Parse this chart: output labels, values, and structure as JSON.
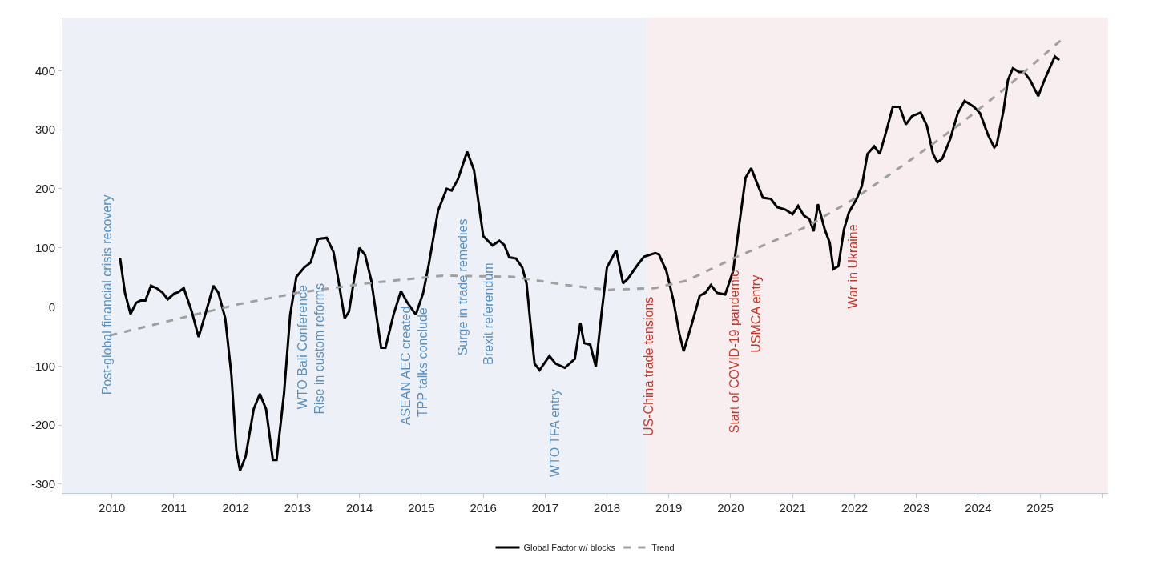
{
  "chart_data": {
    "type": "line",
    "legend": "bottom",
    "grid": false,
    "marker": "none",
    "xlim": [
      2009.2,
      2026.1
    ],
    "xticks": [
      2010,
      2011,
      2012,
      2013,
      2014,
      2015,
      2016,
      2017,
      2018,
      2019,
      2020,
      2021,
      2022,
      2023,
      2024,
      2025,
      {
        "value": 2026,
        "label": null
      }
    ],
    "ylim": [
      -315,
      490
    ],
    "yticks": [
      -300,
      -200,
      -100,
      0,
      100,
      200,
      300,
      400
    ],
    "bands": [
      {
        "axis": "x",
        "from": 2009.2,
        "to": 2018.65,
        "color": "#edf1f7"
      },
      {
        "axis": "x",
        "from": 2018.65,
        "to": 2026.1,
        "color": "#f9eeef"
      }
    ],
    "series": [
      {
        "name": "Global Factor w/ blocks",
        "color": "#000000",
        "line_style": "solid",
        "x": [
          2010.13,
          2010.21,
          2010.3,
          2010.39,
          2010.46,
          2010.54,
          2010.63,
          2010.72,
          2010.82,
          2010.9,
          2011.01,
          2011.07,
          2011.16,
          2011.29,
          2011.4,
          2011.52,
          2011.64,
          2011.72,
          2011.83,
          2011.93,
          2012.01,
          2012.07,
          2012.16,
          2012.29,
          2012.39,
          2012.49,
          2012.6,
          2012.66,
          2012.78,
          2012.88,
          2012.98,
          2013.11,
          2013.21,
          2013.33,
          2013.47,
          2013.58,
          2013.65,
          2013.76,
          2013.83,
          2013.91,
          2014.0,
          2014.09,
          2014.19,
          2014.35,
          2014.42,
          2014.55,
          2014.67,
          2014.77,
          2014.91,
          2015.03,
          2015.12,
          2015.27,
          2015.41,
          2015.49,
          2015.59,
          2015.74,
          2015.85,
          2016.0,
          2016.15,
          2016.26,
          2016.34,
          2016.42,
          2016.53,
          2016.63,
          2016.7,
          2016.77,
          2016.83,
          2016.91,
          2017.07,
          2017.17,
          2017.32,
          2017.48,
          2017.57,
          2017.63,
          2017.73,
          2017.82,
          2017.91,
          2018.0,
          2018.15,
          2018.26,
          2018.34,
          2018.5,
          2018.6,
          2018.78,
          2018.84,
          2018.96,
          2019.07,
          2019.17,
          2019.24,
          2019.37,
          2019.5,
          2019.59,
          2019.68,
          2019.78,
          2019.91,
          2020.04,
          2020.14,
          2020.24,
          2020.33,
          2020.42,
          2020.52,
          2020.65,
          2020.75,
          2020.88,
          2021.0,
          2021.09,
          2021.18,
          2021.27,
          2021.34,
          2021.41,
          2021.52,
          2021.6,
          2021.66,
          2021.74,
          2021.83,
          2021.91,
          2022.04,
          2022.12,
          2022.21,
          2022.32,
          2022.41,
          2022.51,
          2022.62,
          2022.73,
          2022.83,
          2022.93,
          2023.07,
          2023.17,
          2023.27,
          2023.34,
          2023.42,
          2023.55,
          2023.67,
          2023.78,
          2023.93,
          2024.03,
          2024.16,
          2024.26,
          2024.3,
          2024.41,
          2024.48,
          2024.56,
          2024.66,
          2024.74,
          2024.84,
          2024.97,
          2025.07,
          2025.15,
          2025.24,
          2025.31
        ],
        "values": [
          83,
          24,
          -12,
          7,
          11,
          11,
          36,
          32,
          24,
          13,
          23,
          25,
          32,
          -8,
          -51,
          -8,
          36,
          24,
          -19,
          -115,
          -243,
          -277,
          -253,
          -173,
          -147,
          -173,
          -259,
          -259,
          -147,
          -13,
          51,
          67,
          75,
          115,
          117,
          93,
          51,
          -19,
          -8,
          45,
          100,
          88,
          45,
          -69,
          -69,
          -13,
          27,
          8,
          -13,
          24,
          72,
          163,
          200,
          197,
          216,
          263,
          232,
          120,
          104,
          112,
          105,
          84,
          82,
          67,
          40,
          -35,
          -96,
          -107,
          -83,
          -96,
          -103,
          -88,
          -27,
          -61,
          -64,
          -101,
          -13,
          67,
          96,
          40,
          48,
          72,
          85,
          91,
          89,
          61,
          13,
          -45,
          -75,
          -29,
          19,
          24,
          37,
          24,
          21,
          61,
          141,
          219,
          235,
          211,
          185,
          183,
          169,
          165,
          157,
          171,
          155,
          149,
          128,
          174,
          131,
          109,
          64,
          69,
          131,
          160,
          184,
          205,
          259,
          272,
          259,
          296,
          339,
          339,
          309,
          323,
          329,
          307,
          259,
          245,
          251,
          285,
          328,
          349,
          339,
          328,
          291,
          270,
          275,
          333,
          384,
          404,
          398,
          398,
          384,
          357,
          384,
          403,
          424,
          418
        ]
      },
      {
        "name": "Trend",
        "color": "#a0a0a0",
        "line_style": "dashed",
        "x": [
          2009.97,
          2011.34,
          2012.06,
          2013.0,
          2014.12,
          2015.35,
          2016.48,
          2017.35,
          2018.01,
          2018.78,
          2019.3,
          2020.06,
          2021.23,
          2022.01,
          2022.83,
          2023.7,
          2024.47,
          2025.33
        ],
        "values": [
          -48,
          -13,
          5,
          24,
          40,
          53,
          51,
          37,
          29,
          32,
          45,
          83,
          136,
          184,
          243,
          309,
          373,
          451
        ]
      }
    ],
    "annotations": [
      "Post-global financial crisis recovery",
      "WTO Bali Conference",
      "Rise in custom reforms",
      "ASEAN AEC created",
      "TPP talks conclude",
      "Surge in trade remedies",
      "Brexit referendum",
      "WTO TFA entry",
      "US-China trade tensions",
      "Start of COVID-19 pandemic",
      "USMCA entry",
      "War in Ukraine"
    ]
  }
}
